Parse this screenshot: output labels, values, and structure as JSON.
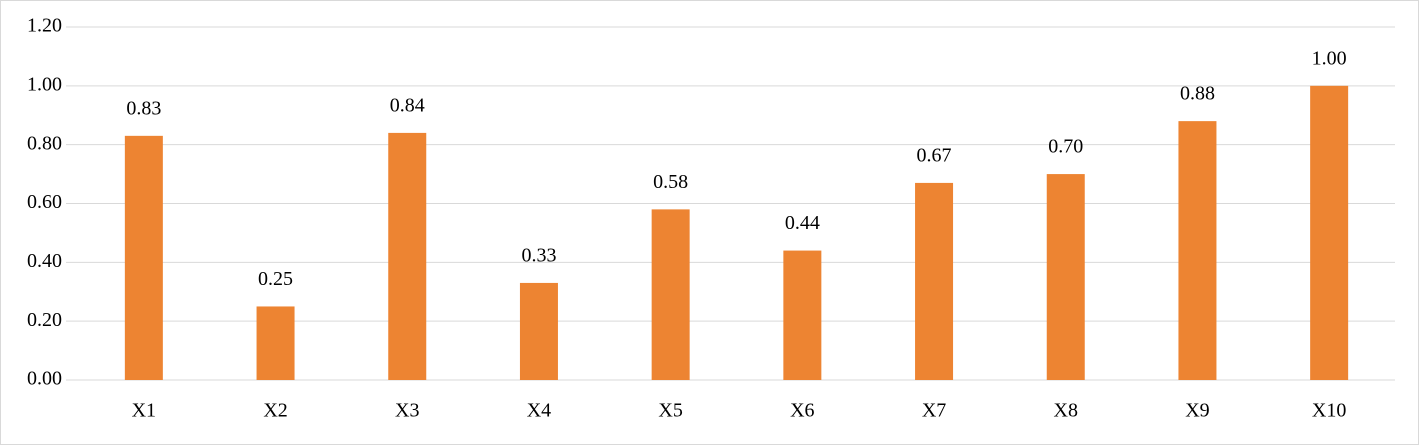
{
  "chart_data": {
    "type": "bar",
    "categories": [
      "X1",
      "X2",
      "X3",
      "X4",
      "X5",
      "X6",
      "X7",
      "X8",
      "X9",
      "X10"
    ],
    "values": [
      0.83,
      0.25,
      0.84,
      0.33,
      0.58,
      0.44,
      0.67,
      0.7,
      0.88,
      1.0
    ],
    "value_labels": [
      "0.83",
      "0.25",
      "0.84",
      "0.33",
      "0.58",
      "0.44",
      "0.67",
      "0.70",
      "0.88",
      "1.00"
    ],
    "color": "#ed8432",
    "ylim": [
      0,
      1.2
    ],
    "yticks": [
      {
        "value": 0,
        "label": "0.00"
      },
      {
        "value": 0.2,
        "label": "0.20"
      },
      {
        "value": 0.4,
        "label": "0.40"
      },
      {
        "value": 0.6,
        "label": "0.60"
      },
      {
        "value": 0.8,
        "label": "0.80"
      },
      {
        "value": 1.0,
        "label": "1.00"
      },
      {
        "value": 1.2,
        "label": "1.20"
      }
    ],
    "grid": true
  }
}
